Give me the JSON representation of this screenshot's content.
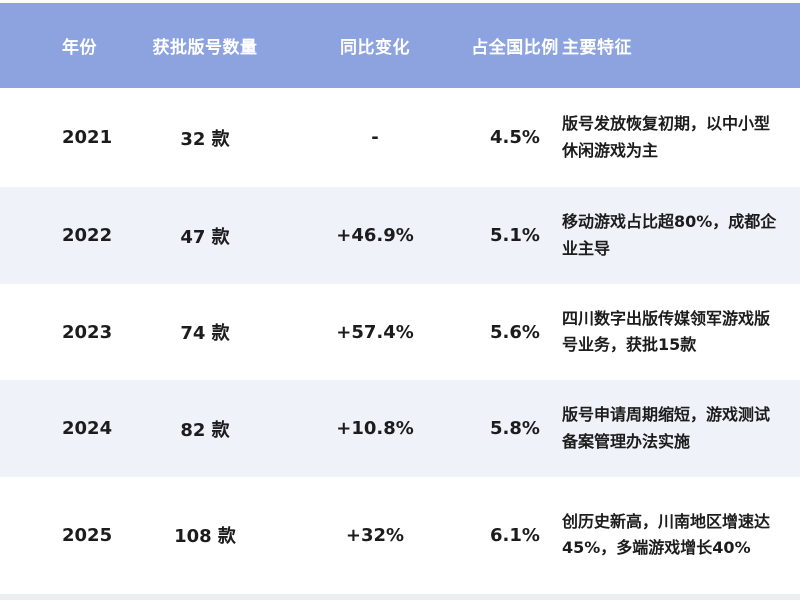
{
  "colors": {
    "header_bg": "#8CA3E0",
    "header_text": "#FFFFFF",
    "row_bg": "#FFFFFF",
    "row_alt_bg": "#EFF2F9",
    "body_text": "#1C1C1C",
    "bottom_strip": "#EDEEF0"
  },
  "table": {
    "columns": [
      {
        "key": "year",
        "label": "年份"
      },
      {
        "key": "count",
        "label": "获批版号数量"
      },
      {
        "key": "change",
        "label": "同比变化"
      },
      {
        "key": "share",
        "label": "占全国比例"
      },
      {
        "key": "features",
        "label": "主要特征"
      }
    ],
    "rows": [
      {
        "year": "2021",
        "count": "32 款",
        "change": "-",
        "share": "4.5%",
        "features": "版号发放恢复初期，以中小型休闲游戏为主"
      },
      {
        "year": "2022",
        "count": "47 款",
        "change": "+46.9%",
        "share": "5.1%",
        "features": "移动游戏占比超80%，成都企业主导"
      },
      {
        "year": "2023",
        "count": "74 款",
        "change": "+57.4%",
        "share": "5.6%",
        "features": "四川数字出版传媒领军游戏版号业务，获批15款"
      },
      {
        "year": "2024",
        "count": "82 款",
        "change": "+10.8%",
        "share": "5.8%",
        "features": "版号申请周期缩短，游戏测试备案管理办法实施"
      },
      {
        "year": "2025",
        "count": "108 款",
        "change": "+32%",
        "share": "6.1%",
        "features": "创历史新高，川南地区增速达45%，多端游戏增长40%"
      }
    ]
  },
  "chart_data": {
    "type": "table",
    "title": "",
    "categories": [
      "2021",
      "2022",
      "2023",
      "2024",
      "2025"
    ],
    "series": [
      {
        "name": "获批版号数量",
        "values": [
          32,
          47,
          74,
          82,
          108
        ],
        "unit": "款"
      },
      {
        "name": "同比变化",
        "values": [
          null,
          46.9,
          57.4,
          10.8,
          32
        ],
        "unit": "%"
      },
      {
        "name": "占全国比例",
        "values": [
          4.5,
          5.1,
          5.6,
          5.8,
          6.1
        ],
        "unit": "%"
      }
    ],
    "annotations": [
      "版号发放恢复初期，以中小型休闲游戏为主",
      "移动游戏占比超80%，成都企业主导",
      "四川数字出版传媒领军游戏版号业务，获批15款",
      "版号申请周期缩短，游戏测试备案管理办法实施",
      "创历史新高，川南地区增速达45%，多端游戏增长40%"
    ]
  }
}
